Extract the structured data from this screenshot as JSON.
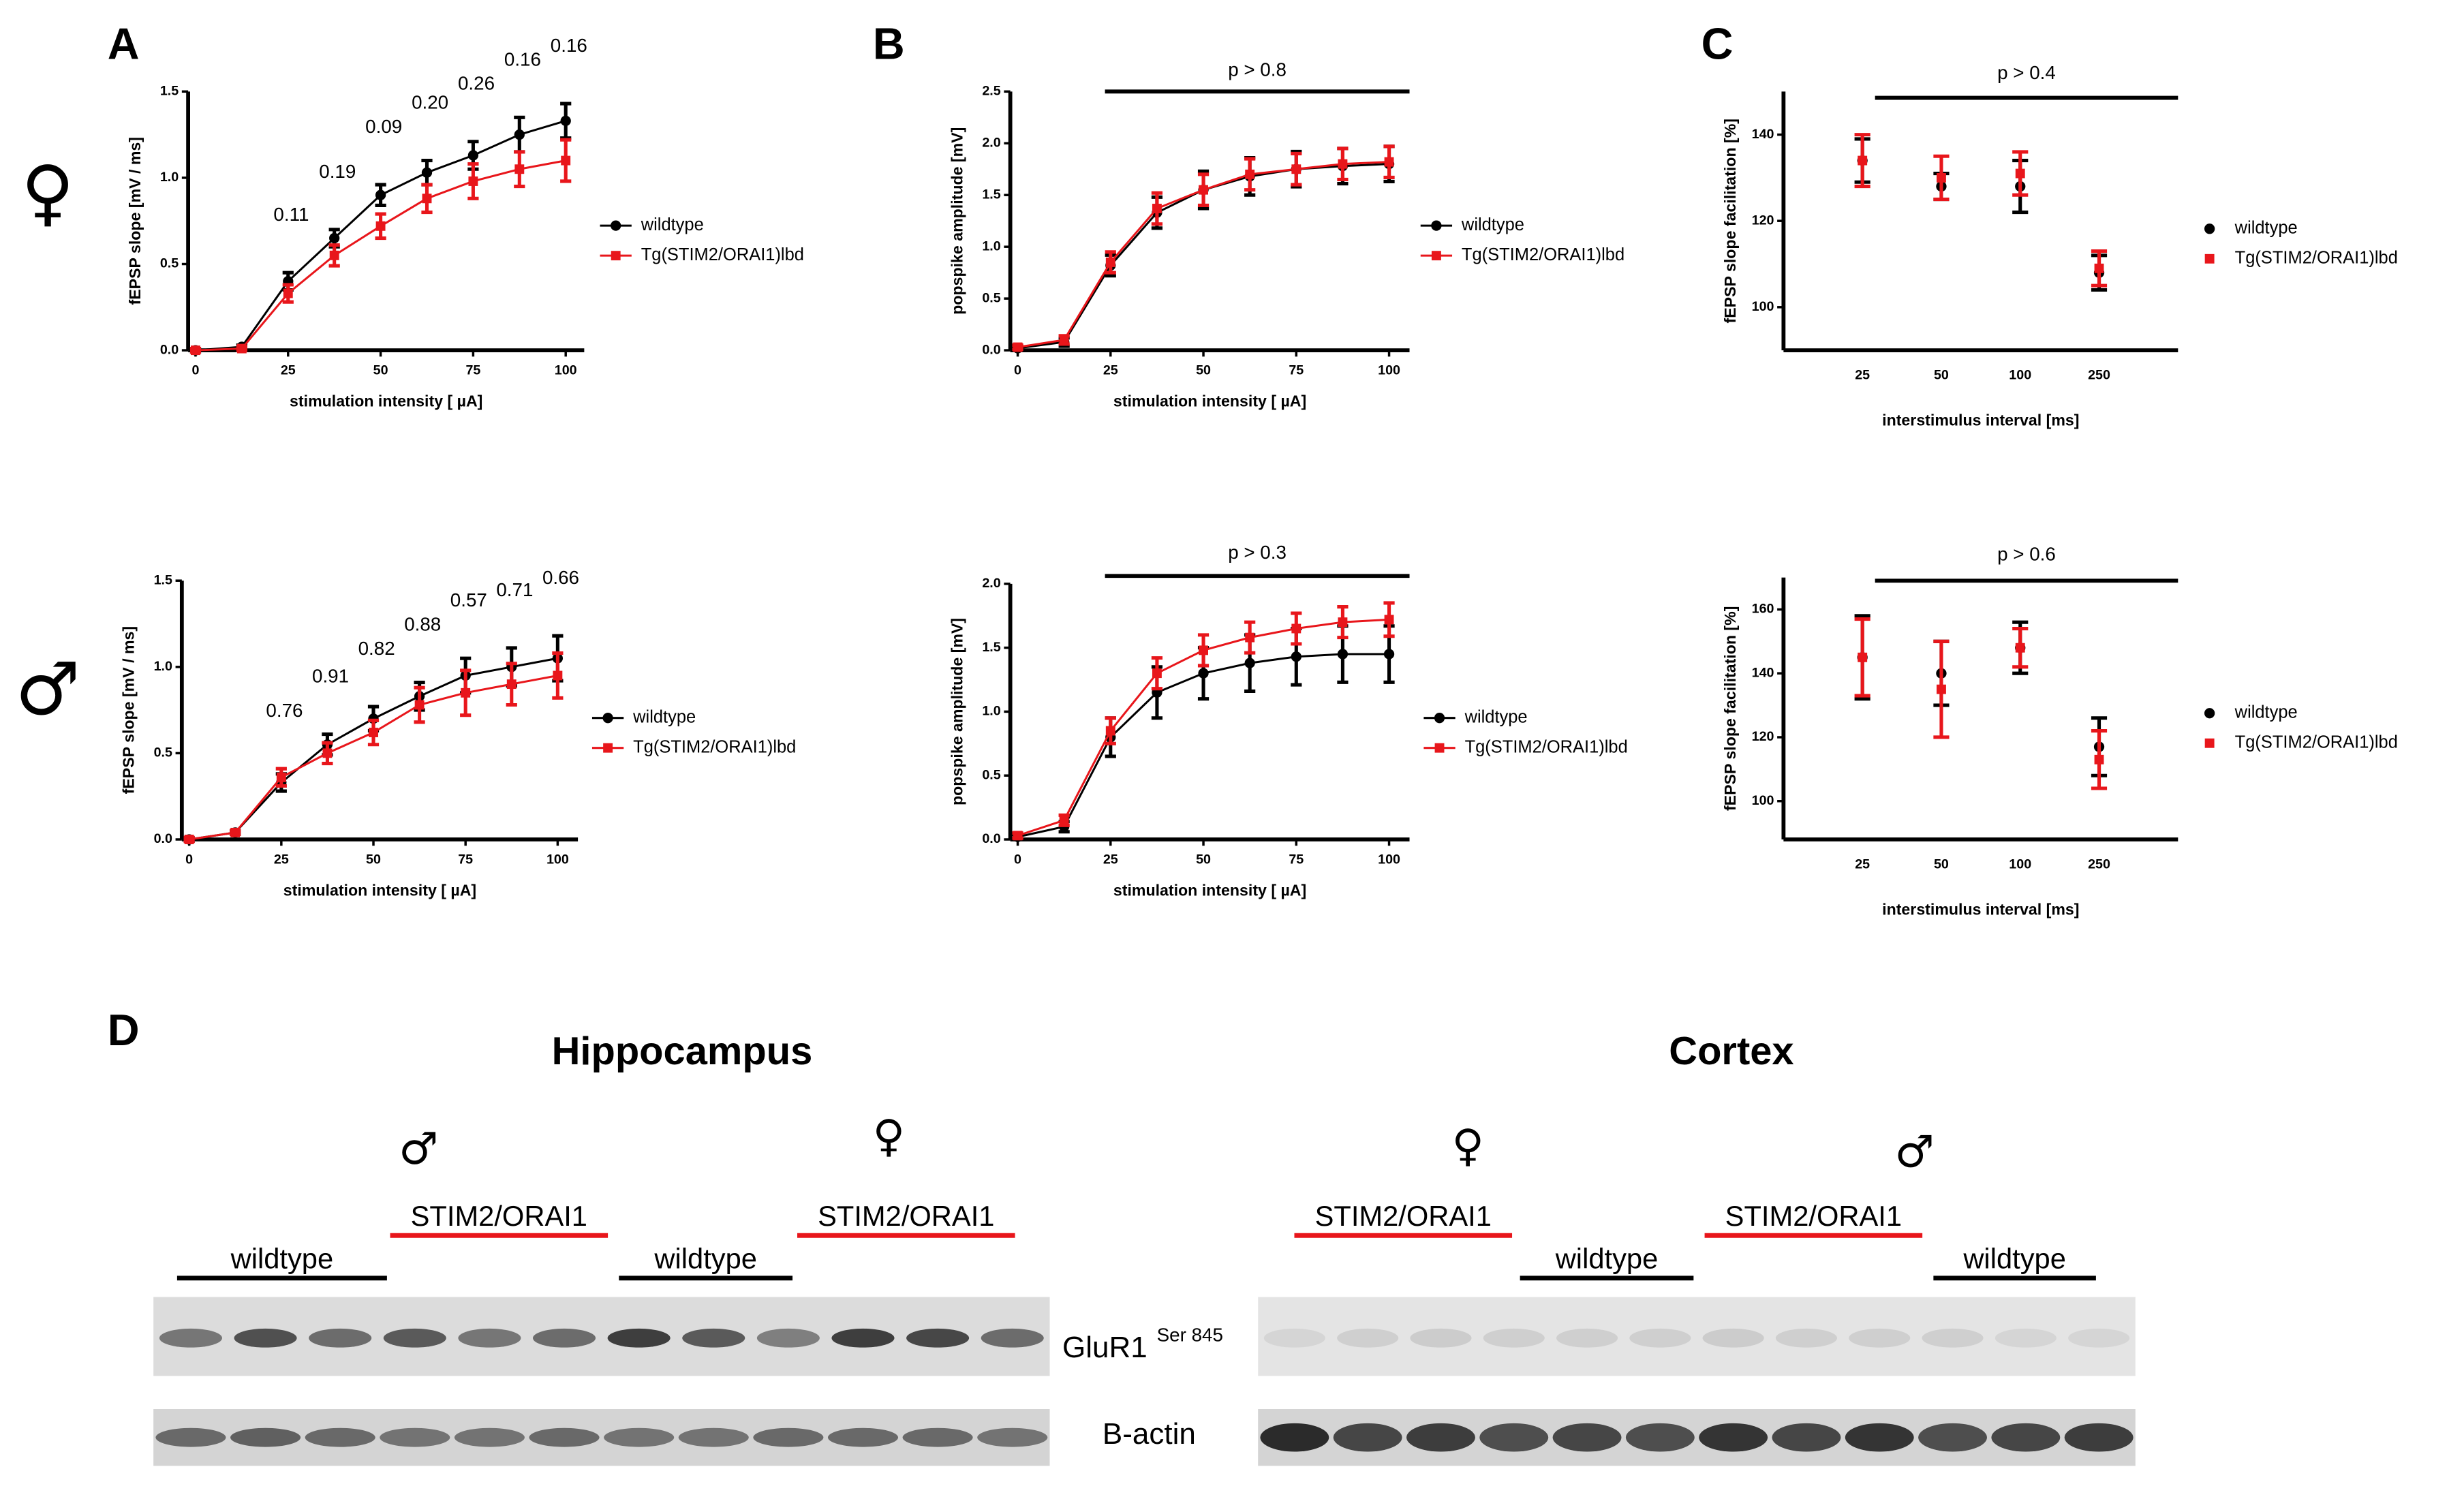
{
  "figure": {
    "panel_labels": [
      "A",
      "B",
      "C"
    ],
    "row_labels": [
      "♀",
      "♂"
    ]
  },
  "chart_data": [
    {
      "type": "line",
      "ylabel": "fEPSP slope [mV / ms]",
      "xlabel": "stimulation intensity [ µA]",
      "x": [
        0,
        12.5,
        25,
        37.5,
        50,
        62.5,
        75,
        87.5,
        100
      ],
      "xlim": [
        -2,
        105
      ],
      "xticks": [
        0,
        25,
        50,
        75,
        100
      ],
      "ylim": [
        0,
        1.5
      ],
      "yticks": [
        {
          "value": 0,
          "label": "0.0"
        },
        {
          "value": 0.5,
          "label": "0.5"
        },
        {
          "value": 1,
          "label": "1.0"
        },
        {
          "value": 1.5,
          "label": "1.5"
        }
      ],
      "p_labels": [
        null,
        null,
        "0.11",
        "0.19",
        "0.09",
        "0.20",
        "0.26",
        "0.16",
        "0.16"
      ],
      "series": [
        {
          "name": "wildtype",
          "color": "#000000",
          "values": [
            0,
            0.02,
            0.4,
            0.65,
            0.9,
            1.03,
            1.13,
            1.25,
            1.33
          ],
          "errors": [
            0.01,
            0.01,
            0.05,
            0.05,
            0.06,
            0.07,
            0.08,
            0.1,
            0.1
          ]
        },
        {
          "name": "Tg(STIM2/ORAI1)lbd",
          "color": "#e8161b",
          "values": [
            0,
            0.01,
            0.33,
            0.55,
            0.72,
            0.88,
            0.98,
            1.05,
            1.1
          ],
          "errors": [
            0.01,
            0.01,
            0.05,
            0.06,
            0.07,
            0.08,
            0.1,
            0.1,
            0.12
          ]
        }
      ]
    },
    {
      "type": "line",
      "ylabel": "popspike amplitude [mV]",
      "xlabel": "stimulation intensity [ µA]",
      "annotation": "p > 0.8",
      "x": [
        0,
        12.5,
        25,
        37.5,
        50,
        62.5,
        75,
        87.5,
        100
      ],
      "xlim": [
        -2,
        105.5
      ],
      "xticks": [
        0,
        25,
        50,
        75,
        100
      ],
      "ylim": [
        0,
        2.5
      ],
      "yticks": [
        {
          "value": 0,
          "label": "0.0"
        },
        {
          "value": 0.5,
          "label": "0.5"
        },
        {
          "value": 1,
          "label": "1.0"
        },
        {
          "value": 1.5,
          "label": "1.5"
        },
        {
          "value": 2,
          "label": "2.0"
        },
        {
          "value": 2.5,
          "label": "2.5"
        }
      ],
      "series": [
        {
          "name": "wildtype",
          "color": "#000000",
          "values": [
            0.02,
            0.08,
            0.82,
            1.33,
            1.55,
            1.68,
            1.75,
            1.78,
            1.8
          ],
          "errors": [
            0.02,
            0.04,
            0.1,
            0.15,
            0.18,
            0.18,
            0.17,
            0.17,
            0.17
          ]
        },
        {
          "name": "Tg(STIM2/ORAI1)lbd",
          "color": "#e8161b",
          "values": [
            0.03,
            0.1,
            0.85,
            1.37,
            1.55,
            1.7,
            1.75,
            1.8,
            1.82
          ],
          "errors": [
            0.02,
            0.04,
            0.1,
            0.15,
            0.15,
            0.15,
            0.15,
            0.15,
            0.15
          ]
        }
      ]
    },
    {
      "type": "scatter",
      "ylabel": "fEPSP slope facilitation [%]",
      "xlabel": "interstimulus interval [ms]",
      "annotation": "p > 0.4",
      "categories": [
        "25",
        "50",
        "100",
        "250"
      ],
      "ylim": [
        90,
        150
      ],
      "yticks": [
        100,
        120,
        140
      ],
      "series": [
        {
          "name": "wildtype",
          "color": "#000000",
          "values": [
            134,
            128,
            128,
            108
          ],
          "errors": [
            5,
            3,
            6,
            4
          ]
        },
        {
          "name": "Tg(STIM2/ORAI1)lbd",
          "color": "#e8161b",
          "values": [
            134,
            130,
            131,
            109
          ],
          "errors": [
            6,
            5,
            5,
            4
          ]
        }
      ]
    },
    {
      "type": "line",
      "ylabel": "fEPSP slope [mV / ms]",
      "xlabel": "stimulation intensity [ µA]",
      "x": [
        0,
        12.5,
        25,
        37.5,
        50,
        62.5,
        75,
        87.5,
        100
      ],
      "xlim": [
        -2,
        105.5
      ],
      "xticks": [
        0,
        25,
        50,
        75,
        100
      ],
      "ylim": [
        0,
        1.5
      ],
      "yticks": [
        {
          "value": 0,
          "label": "0.0"
        },
        {
          "value": 0.5,
          "label": "0.5"
        },
        {
          "value": 1,
          "label": "1.0"
        },
        {
          "value": 1.5,
          "label": "1.5"
        }
      ],
      "p_labels": [
        null,
        null,
        "0.76",
        "0.91",
        "0.82",
        "0.88",
        "0.57",
        "0.71",
        "0.66"
      ],
      "series": [
        {
          "name": "wildtype",
          "color": "#000000",
          "values": [
            0,
            0.04,
            0.33,
            0.55,
            0.7,
            0.83,
            0.95,
            1.0,
            1.05
          ],
          "errors": [
            0.01,
            0.01,
            0.05,
            0.06,
            0.07,
            0.08,
            0.1,
            0.11,
            0.13
          ]
        },
        {
          "name": "Tg(STIM2/ORAI1)lbd",
          "color": "#e8161b",
          "values": [
            0,
            0.04,
            0.36,
            0.5,
            0.62,
            0.78,
            0.85,
            0.9,
            0.95
          ],
          "errors": [
            0.01,
            0.01,
            0.05,
            0.06,
            0.07,
            0.1,
            0.13,
            0.12,
            0.13
          ]
        }
      ]
    },
    {
      "type": "line",
      "ylabel": "popspike amplitude [mV]",
      "xlabel": "stimulation intensity [ µA]",
      "annotation": "p > 0.3",
      "x": [
        0,
        12.5,
        25,
        37.5,
        50,
        62.5,
        75,
        87.5,
        100
      ],
      "xlim": [
        -2,
        105.5
      ],
      "xticks": [
        0,
        25,
        50,
        75,
        100
      ],
      "ylim": [
        0,
        2
      ],
      "yticks": [
        {
          "value": 0,
          "label": "0.0"
        },
        {
          "value": 0.5,
          "label": "0.5"
        },
        {
          "value": 1,
          "label": "1.0"
        },
        {
          "value": 1.5,
          "label": "1.5"
        },
        {
          "value": 2,
          "label": "2.0"
        }
      ],
      "series": [
        {
          "name": "wildtype",
          "color": "#000000",
          "values": [
            0.02,
            0.1,
            0.8,
            1.15,
            1.3,
            1.38,
            1.43,
            1.45,
            1.45
          ],
          "errors": [
            0.02,
            0.04,
            0.15,
            0.2,
            0.2,
            0.22,
            0.22,
            0.22,
            0.22
          ]
        },
        {
          "name": "Tg(STIM2/ORAI1)lbd",
          "color": "#e8161b",
          "values": [
            0.03,
            0.15,
            0.85,
            1.3,
            1.48,
            1.58,
            1.65,
            1.7,
            1.72
          ],
          "errors": [
            0.02,
            0.04,
            0.1,
            0.12,
            0.12,
            0.12,
            0.12,
            0.12,
            0.13
          ]
        }
      ]
    },
    {
      "type": "scatter",
      "ylabel": "fEPSP slope facilitation [%]",
      "xlabel": "interstimulus interval [ms]",
      "annotation": "p > 0.6",
      "categories": [
        "25",
        "50",
        "100",
        "250"
      ],
      "ylim": [
        88,
        170
      ],
      "yticks": [
        100,
        120,
        140,
        160
      ],
      "series": [
        {
          "name": "wildtype",
          "color": "#000000",
          "values": [
            145,
            140,
            148,
            117
          ],
          "errors": [
            13,
            10,
            8,
            9
          ]
        },
        {
          "name": "Tg(STIM2/ORAI1)lbd",
          "color": "#e8161b",
          "values": [
            145,
            135,
            148,
            113
          ],
          "errors": [
            12,
            15,
            6,
            9
          ]
        }
      ]
    }
  ],
  "blot": {
    "label": "D",
    "regions": [
      {
        "title": "Hippocampus",
        "sexes": [
          "♂",
          "♀"
        ],
        "groups": [
          "wildtype",
          "STIM2/ORAI1",
          "wildtype",
          "STIM2/ORAI1"
        ]
      },
      {
        "title": "Cortex",
        "sexes": [
          "♀",
          "♂"
        ],
        "groups": [
          "STIM2/ORAI1",
          "wildtype",
          "STIM2/ORAI1",
          "wildtype"
        ]
      }
    ],
    "bands": [
      {
        "name": "GluR1",
        "sup": "Ser 845"
      },
      {
        "name": "B-actin"
      }
    ]
  }
}
